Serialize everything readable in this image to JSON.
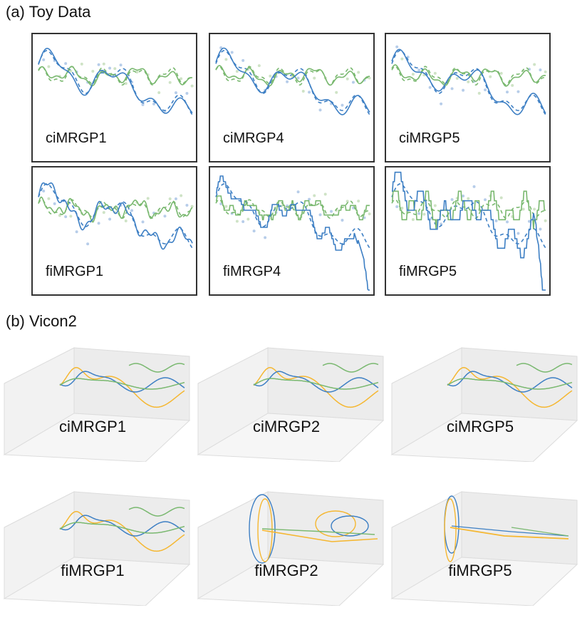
{
  "section_a": {
    "title": "(a) Toy Data"
  },
  "section_b": {
    "title": "(b) Vicon2"
  },
  "colors": {
    "blue": "#3d7fc4",
    "green": "#79b86f",
    "orange": "#f5b731",
    "dot_blue": "#b7cde9",
    "dot_green": "#cfe3c6",
    "box_face": "#ececec",
    "box_edge": "#dcdcdc"
  },
  "toy_panels": [
    {
      "label": "ciMRGP1",
      "variant": "smooth",
      "offset": 0.0
    },
    {
      "label": "ciMRGP4",
      "variant": "smooth",
      "offset": 0.15
    },
    {
      "label": "ciMRGP5",
      "variant": "smooth",
      "offset": 0.3
    },
    {
      "label": "fiMRGP1",
      "variant": "wiggly",
      "offset": 0.05
    },
    {
      "label": "fiMRGP4",
      "variant": "steppy",
      "offset": 0.2
    },
    {
      "label": "fiMRGP5",
      "variant": "jagged",
      "offset": 0.35
    }
  ],
  "vicon_panels": [
    {
      "label": "ciMRGP1",
      "variant": "normal"
    },
    {
      "label": "ciMRGP2",
      "variant": "normal"
    },
    {
      "label": "ciMRGP5",
      "variant": "normal"
    },
    {
      "label": "fiMRGP1",
      "variant": "normal"
    },
    {
      "label": "fiMRGP2",
      "variant": "lobes"
    },
    {
      "label": "fiMRGP5",
      "variant": "collapsed"
    }
  ],
  "chart_data": [
    {
      "type": "line",
      "title": "(a) Toy Data",
      "panels": [
        "ciMRGP1",
        "ciMRGP4",
        "ciMRGP5",
        "fiMRGP1",
        "fiMRGP4",
        "fiMRGP5"
      ],
      "series_colors": [
        "#3d7fc4",
        "#79b86f"
      ],
      "grid": false
    },
    {
      "type": "line",
      "title": "(b) Vicon2",
      "panels": [
        "ciMRGP1",
        "ciMRGP2",
        "ciMRGP5",
        "fiMRGP1",
        "fiMRGP2",
        "fiMRGP5"
      ],
      "series_colors": [
        "#f5b731",
        "#3d7fc4",
        "#79b86f"
      ],
      "grid": false
    }
  ]
}
